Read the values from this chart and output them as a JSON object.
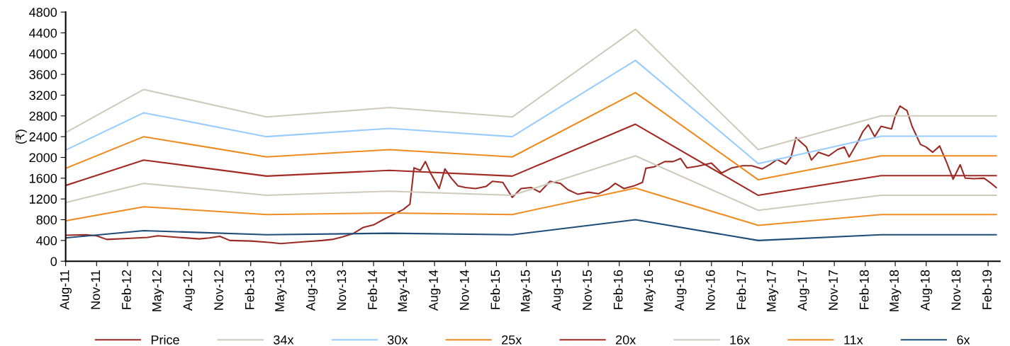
{
  "chart_data": {
    "type": "line",
    "ylabel": "(₹)",
    "ylim": [
      0,
      4800
    ],
    "yticks": [
      0,
      400,
      800,
      1200,
      1600,
      2000,
      2400,
      2800,
      3200,
      3600,
      4000,
      4400,
      4800
    ],
    "xlim": [
      "2011-08-01",
      "2019-03-08"
    ],
    "xticks": [
      {
        "value": "2011-08-01",
        "label": "Aug-11"
      },
      {
        "value": "2011-11-01",
        "label": "Nov-11"
      },
      {
        "value": "2012-02-01",
        "label": "Feb-12"
      },
      {
        "value": "2012-05-01",
        "label": "May-12"
      },
      {
        "value": "2012-08-01",
        "label": "Aug-12"
      },
      {
        "value": "2012-11-01",
        "label": "Nov-12"
      },
      {
        "value": "2013-02-01",
        "label": "Feb-13"
      },
      {
        "value": "2013-05-01",
        "label": "May-13"
      },
      {
        "value": "2013-08-01",
        "label": "Aug-13"
      },
      {
        "value": "2013-11-01",
        "label": "Nov-13"
      },
      {
        "value": "2014-02-01",
        "label": "Feb-14"
      },
      {
        "value": "2014-05-01",
        "label": "May-14"
      },
      {
        "value": "2014-08-01",
        "label": "Aug-14"
      },
      {
        "value": "2014-11-01",
        "label": "Nov-14"
      },
      {
        "value": "2015-02-01",
        "label": "Feb-15"
      },
      {
        "value": "2015-05-01",
        "label": "May-15"
      },
      {
        "value": "2015-08-01",
        "label": "Aug-15"
      },
      {
        "value": "2015-11-01",
        "label": "Nov-15"
      },
      {
        "value": "2016-02-01",
        "label": "Feb-16"
      },
      {
        "value": "2016-05-01",
        "label": "May-16"
      },
      {
        "value": "2016-08-01",
        "label": "Aug-16"
      },
      {
        "value": "2016-11-01",
        "label": "Nov-16"
      },
      {
        "value": "2017-02-01",
        "label": "Feb-17"
      },
      {
        "value": "2017-05-01",
        "label": "May-17"
      },
      {
        "value": "2017-08-01",
        "label": "Aug-17"
      },
      {
        "value": "2017-11-01",
        "label": "Nov-17"
      },
      {
        "value": "2018-02-01",
        "label": "Feb-18"
      },
      {
        "value": "2018-05-01",
        "label": "May-18"
      },
      {
        "value": "2018-08-01",
        "label": "Aug-18"
      },
      {
        "value": "2018-11-01",
        "label": "Nov-18"
      },
      {
        "value": "2019-02-01",
        "label": "Feb-19"
      }
    ],
    "grid": false,
    "legend": "bottom",
    "marker": "none",
    "line_style": "solid",
    "series": [
      {
        "name": "Price",
        "color": "#9b2a25",
        "x": [
          "2011-08-01",
          "2011-10-01",
          "2011-11-01",
          "2011-12-01",
          "2012-02-01",
          "2012-04-01",
          "2012-05-01",
          "2012-07-01",
          "2012-09-01",
          "2012-10-01",
          "2012-11-01",
          "2012-12-01",
          "2013-02-01",
          "2013-04-01",
          "2013-05-01",
          "2013-07-01",
          "2013-09-01",
          "2013-10-01",
          "2013-11-01",
          "2013-12-01",
          "2014-01-01",
          "2014-02-01",
          "2014-03-01",
          "2014-04-01",
          "2014-05-01",
          "2014-05-20",
          "2014-06-01",
          "2014-06-20",
          "2014-07-05",
          "2014-07-20",
          "2014-08-15",
          "2014-09-01",
          "2014-09-20",
          "2014-10-10",
          "2014-11-01",
          "2014-12-01",
          "2015-01-01",
          "2015-01-20",
          "2015-02-20",
          "2015-03-20",
          "2015-04-15",
          "2015-05-15",
          "2015-06-10",
          "2015-07-10",
          "2015-08-10",
          "2015-09-01",
          "2015-10-01",
          "2015-11-01",
          "2015-12-01",
          "2016-01-01",
          "2016-01-20",
          "2016-02-15",
          "2016-03-15",
          "2016-04-10",
          "2016-04-20",
          "2016-05-15",
          "2016-06-15",
          "2016-07-10",
          "2016-08-01",
          "2016-08-20",
          "2016-09-20",
          "2016-11-01",
          "2016-12-01",
          "2017-01-01",
          "2017-02-01",
          "2017-03-01",
          "2017-04-01",
          "2017-04-25",
          "2017-05-15",
          "2017-06-10",
          "2017-06-25",
          "2017-07-10",
          "2017-08-10",
          "2017-08-25",
          "2017-09-15",
          "2017-10-15",
          "2017-11-10",
          "2017-12-01",
          "2017-12-15",
          "2018-01-10",
          "2018-01-25",
          "2018-02-10",
          "2018-03-01",
          "2018-03-20",
          "2018-04-20",
          "2018-05-01",
          "2018-05-15",
          "2018-06-05",
          "2018-06-20",
          "2018-07-15",
          "2018-08-01",
          "2018-08-20",
          "2018-09-10",
          "2018-10-01",
          "2018-10-20",
          "2018-11-10",
          "2018-11-25",
          "2018-12-20",
          "2019-01-20",
          "2019-02-10",
          "2019-02-25"
        ],
        "values": [
          500,
          510,
          490,
          420,
          440,
          460,
          490,
          460,
          430,
          450,
          480,
          400,
          390,
          360,
          340,
          370,
          400,
          420,
          470,
          530,
          650,
          700,
          800,
          900,
          1000,
          1100,
          1800,
          1750,
          1920,
          1700,
          1400,
          1780,
          1600,
          1450,
          1420,
          1400,
          1440,
          1540,
          1520,
          1230,
          1400,
          1420,
          1330,
          1540,
          1500,
          1380,
          1290,
          1330,
          1300,
          1400,
          1500,
          1400,
          1450,
          1520,
          1790,
          1820,
          1920,
          1920,
          1980,
          1800,
          1830,
          1890,
          1700,
          1800,
          1840,
          1840,
          1780,
          1870,
          1960,
          1870,
          2000,
          2380,
          2200,
          1950,
          2100,
          2030,
          2150,
          2200,
          2010,
          2300,
          2500,
          2630,
          2400,
          2600,
          2550,
          2800,
          2990,
          2900,
          2600,
          2250,
          2200,
          2100,
          2220,
          1900,
          1580,
          1860,
          1600,
          1590,
          1600,
          1500,
          1420
        ]
      },
      {
        "name": "34x",
        "color": "#cfcabb",
        "x": [
          "2011-08-01",
          "2012-03-20",
          "2013-03-20",
          "2014-03-20",
          "2015-03-20",
          "2016-03-20",
          "2017-03-20",
          "2018-03-20",
          "2019-02-25"
        ],
        "values": [
          2480,
          3310,
          2780,
          2960,
          2780,
          4470,
          2150,
          2800,
          2800
        ]
      },
      {
        "name": "30x",
        "color": "#99ccff",
        "x": [
          "2011-08-01",
          "2012-03-20",
          "2013-03-20",
          "2014-03-20",
          "2015-03-20",
          "2016-03-20",
          "2017-03-20",
          "2018-03-20",
          "2019-02-25"
        ],
        "values": [
          2140,
          2860,
          2400,
          2560,
          2400,
          3870,
          1880,
          2410,
          2410
        ]
      },
      {
        "name": "25x",
        "color": "#ee8a1e",
        "x": [
          "2011-08-01",
          "2012-03-20",
          "2013-03-20",
          "2014-03-20",
          "2015-03-20",
          "2016-03-20",
          "2017-03-20",
          "2018-03-20",
          "2019-02-25"
        ],
        "values": [
          1790,
          2400,
          2010,
          2150,
          2010,
          3250,
          1570,
          2030,
          2030
        ]
      },
      {
        "name": "20x",
        "color": "#a32a23",
        "x": [
          "2011-08-01",
          "2012-03-20",
          "2013-03-20",
          "2014-03-20",
          "2015-03-20",
          "2016-03-20",
          "2017-03-20",
          "2018-03-20",
          "2019-02-25"
        ],
        "values": [
          1460,
          1950,
          1640,
          1750,
          1640,
          2640,
          1270,
          1650,
          1650
        ]
      },
      {
        "name": "16x",
        "color": "#cfcabb",
        "x": [
          "2011-08-01",
          "2012-03-20",
          "2013-03-20",
          "2014-03-20",
          "2015-03-20",
          "2016-03-20",
          "2017-03-20",
          "2018-03-20",
          "2019-02-25"
        ],
        "values": [
          1130,
          1500,
          1270,
          1350,
          1270,
          2030,
          980,
          1270,
          1270
        ]
      },
      {
        "name": "11x",
        "color": "#f08c22",
        "x": [
          "2011-08-01",
          "2012-03-20",
          "2013-03-20",
          "2014-03-20",
          "2015-03-20",
          "2016-03-20",
          "2017-03-20",
          "2018-03-20",
          "2019-02-25"
        ],
        "values": [
          780,
          1050,
          900,
          930,
          900,
          1410,
          690,
          900,
          900
        ]
      },
      {
        "name": "6x",
        "color": "#1f4e79",
        "x": [
          "2011-08-01",
          "2012-03-20",
          "2013-03-20",
          "2014-03-20",
          "2015-03-20",
          "2016-03-20",
          "2017-03-20",
          "2018-03-20",
          "2019-02-25"
        ],
        "values": [
          450,
          590,
          510,
          540,
          510,
          800,
          400,
          510,
          510
        ]
      }
    ]
  }
}
